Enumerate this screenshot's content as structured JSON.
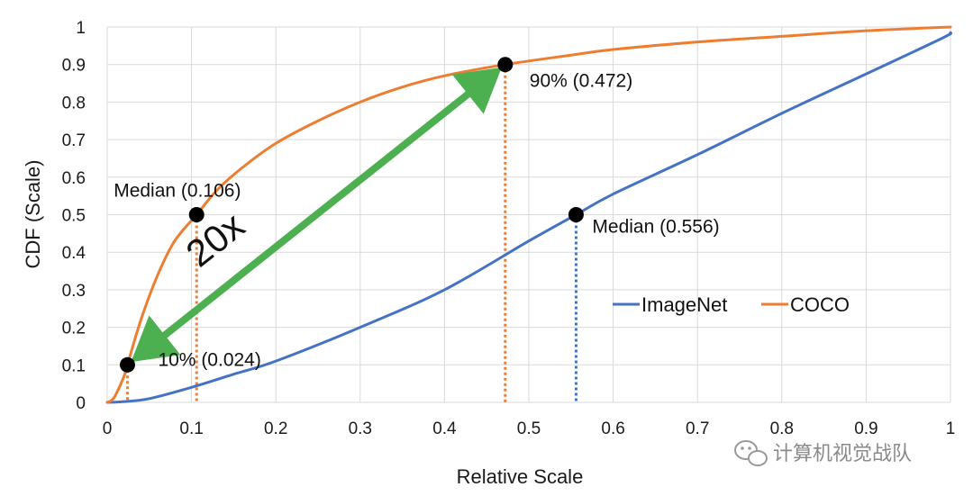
{
  "chart_data": {
    "type": "line",
    "title": "",
    "xlabel": "Relative Scale",
    "ylabel": "CDF (Scale)",
    "xlim": [
      0,
      1
    ],
    "ylim": [
      0,
      1
    ],
    "grid": true,
    "x_ticks": [
      "0",
      "0.1",
      "0.2",
      "0.3",
      "0.4",
      "0.5",
      "0.6",
      "0.7",
      "0.8",
      "0.9",
      "1"
    ],
    "y_ticks": [
      "0",
      "0.1",
      "0.2",
      "0.3",
      "0.4",
      "0.5",
      "0.6",
      "0.7",
      "0.8",
      "0.9",
      "1"
    ],
    "legend_position": "right-middle",
    "series": [
      {
        "name": "ImageNet",
        "color": "#4472c4",
        "x": [
          0,
          0.02,
          0.05,
          0.1,
          0.15,
          0.2,
          0.3,
          0.4,
          0.5,
          0.556,
          0.6,
          0.7,
          0.8,
          0.9,
          0.99,
          1.0
        ],
        "y": [
          0,
          0.002,
          0.01,
          0.04,
          0.075,
          0.11,
          0.2,
          0.3,
          0.43,
          0.5,
          0.555,
          0.66,
          0.77,
          0.875,
          0.97,
          0.985
        ]
      },
      {
        "name": "COCO",
        "color": "#ed7d31",
        "x": [
          0,
          0.005,
          0.01,
          0.02,
          0.024,
          0.04,
          0.06,
          0.08,
          0.106,
          0.13,
          0.16,
          0.2,
          0.25,
          0.3,
          0.35,
          0.4,
          0.472,
          0.55,
          0.6,
          0.7,
          0.8,
          0.9,
          1.0
        ],
        "y": [
          0,
          0.005,
          0.02,
          0.07,
          0.1,
          0.22,
          0.34,
          0.43,
          0.5,
          0.565,
          0.625,
          0.69,
          0.75,
          0.8,
          0.84,
          0.87,
          0.9,
          0.925,
          0.94,
          0.96,
          0.975,
          0.99,
          1.0
        ]
      }
    ],
    "annotations": [
      {
        "id": "coco-median",
        "label": "Median (0.106)",
        "x": 0.106,
        "y": 0.5,
        "series": "COCO"
      },
      {
        "id": "coco-10",
        "label": "10% (0.024)",
        "x": 0.024,
        "y": 0.1,
        "series": "COCO"
      },
      {
        "id": "coco-90",
        "label": "90% (0.472)",
        "x": 0.472,
        "y": 0.9,
        "series": "COCO"
      },
      {
        "id": "imagenet-median",
        "label": "Median (0.556)",
        "x": 0.556,
        "y": 0.5,
        "series": "ImageNet"
      }
    ],
    "ratio_label": "20x",
    "arrow_color": "#4caf50"
  },
  "watermark": {
    "text": "计算机视觉战队",
    "icon": "wechat-icon"
  }
}
